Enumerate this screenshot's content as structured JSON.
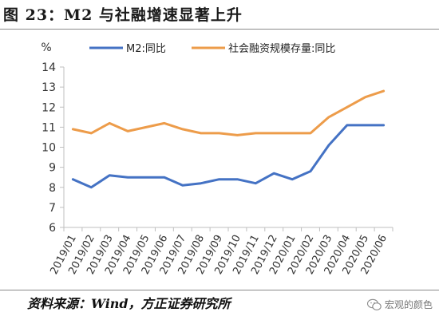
{
  "title": "图 23：M2 与社融增速显著上升",
  "source": "资料来源：Wind，方正证券研究所",
  "watermark": "宏观的颜色",
  "chart_data": {
    "type": "line",
    "unit_label": "%",
    "categories": [
      "2019/01",
      "2019/02",
      "2019/03",
      "2019/04",
      "2019/05",
      "2019/06",
      "2019/07",
      "2019/08",
      "2019/09",
      "2019/10",
      "2019/11",
      "2019/12",
      "2020/01",
      "2020/02",
      "2020/03",
      "2020/04",
      "2020/05",
      "2020/06"
    ],
    "series": [
      {
        "name": "M2:同比",
        "color": "#4472C4",
        "values": [
          8.4,
          8.0,
          8.6,
          8.5,
          8.5,
          8.5,
          8.1,
          8.2,
          8.4,
          8.4,
          8.2,
          8.7,
          8.4,
          8.8,
          10.1,
          11.1,
          11.1,
          11.1
        ]
      },
      {
        "name": "社会融资规模存量:同比",
        "color": "#ED9C4A",
        "values": [
          10.9,
          10.7,
          11.2,
          10.8,
          11.0,
          11.2,
          10.9,
          10.7,
          10.7,
          10.6,
          10.7,
          10.7,
          10.7,
          10.7,
          11.5,
          12.0,
          12.5,
          12.8
        ]
      }
    ],
    "ylim": [
      6,
      14
    ],
    "yticks": [
      6,
      7,
      8,
      9,
      10,
      11,
      12,
      13,
      14
    ],
    "grid": false,
    "legend_position": "top"
  }
}
